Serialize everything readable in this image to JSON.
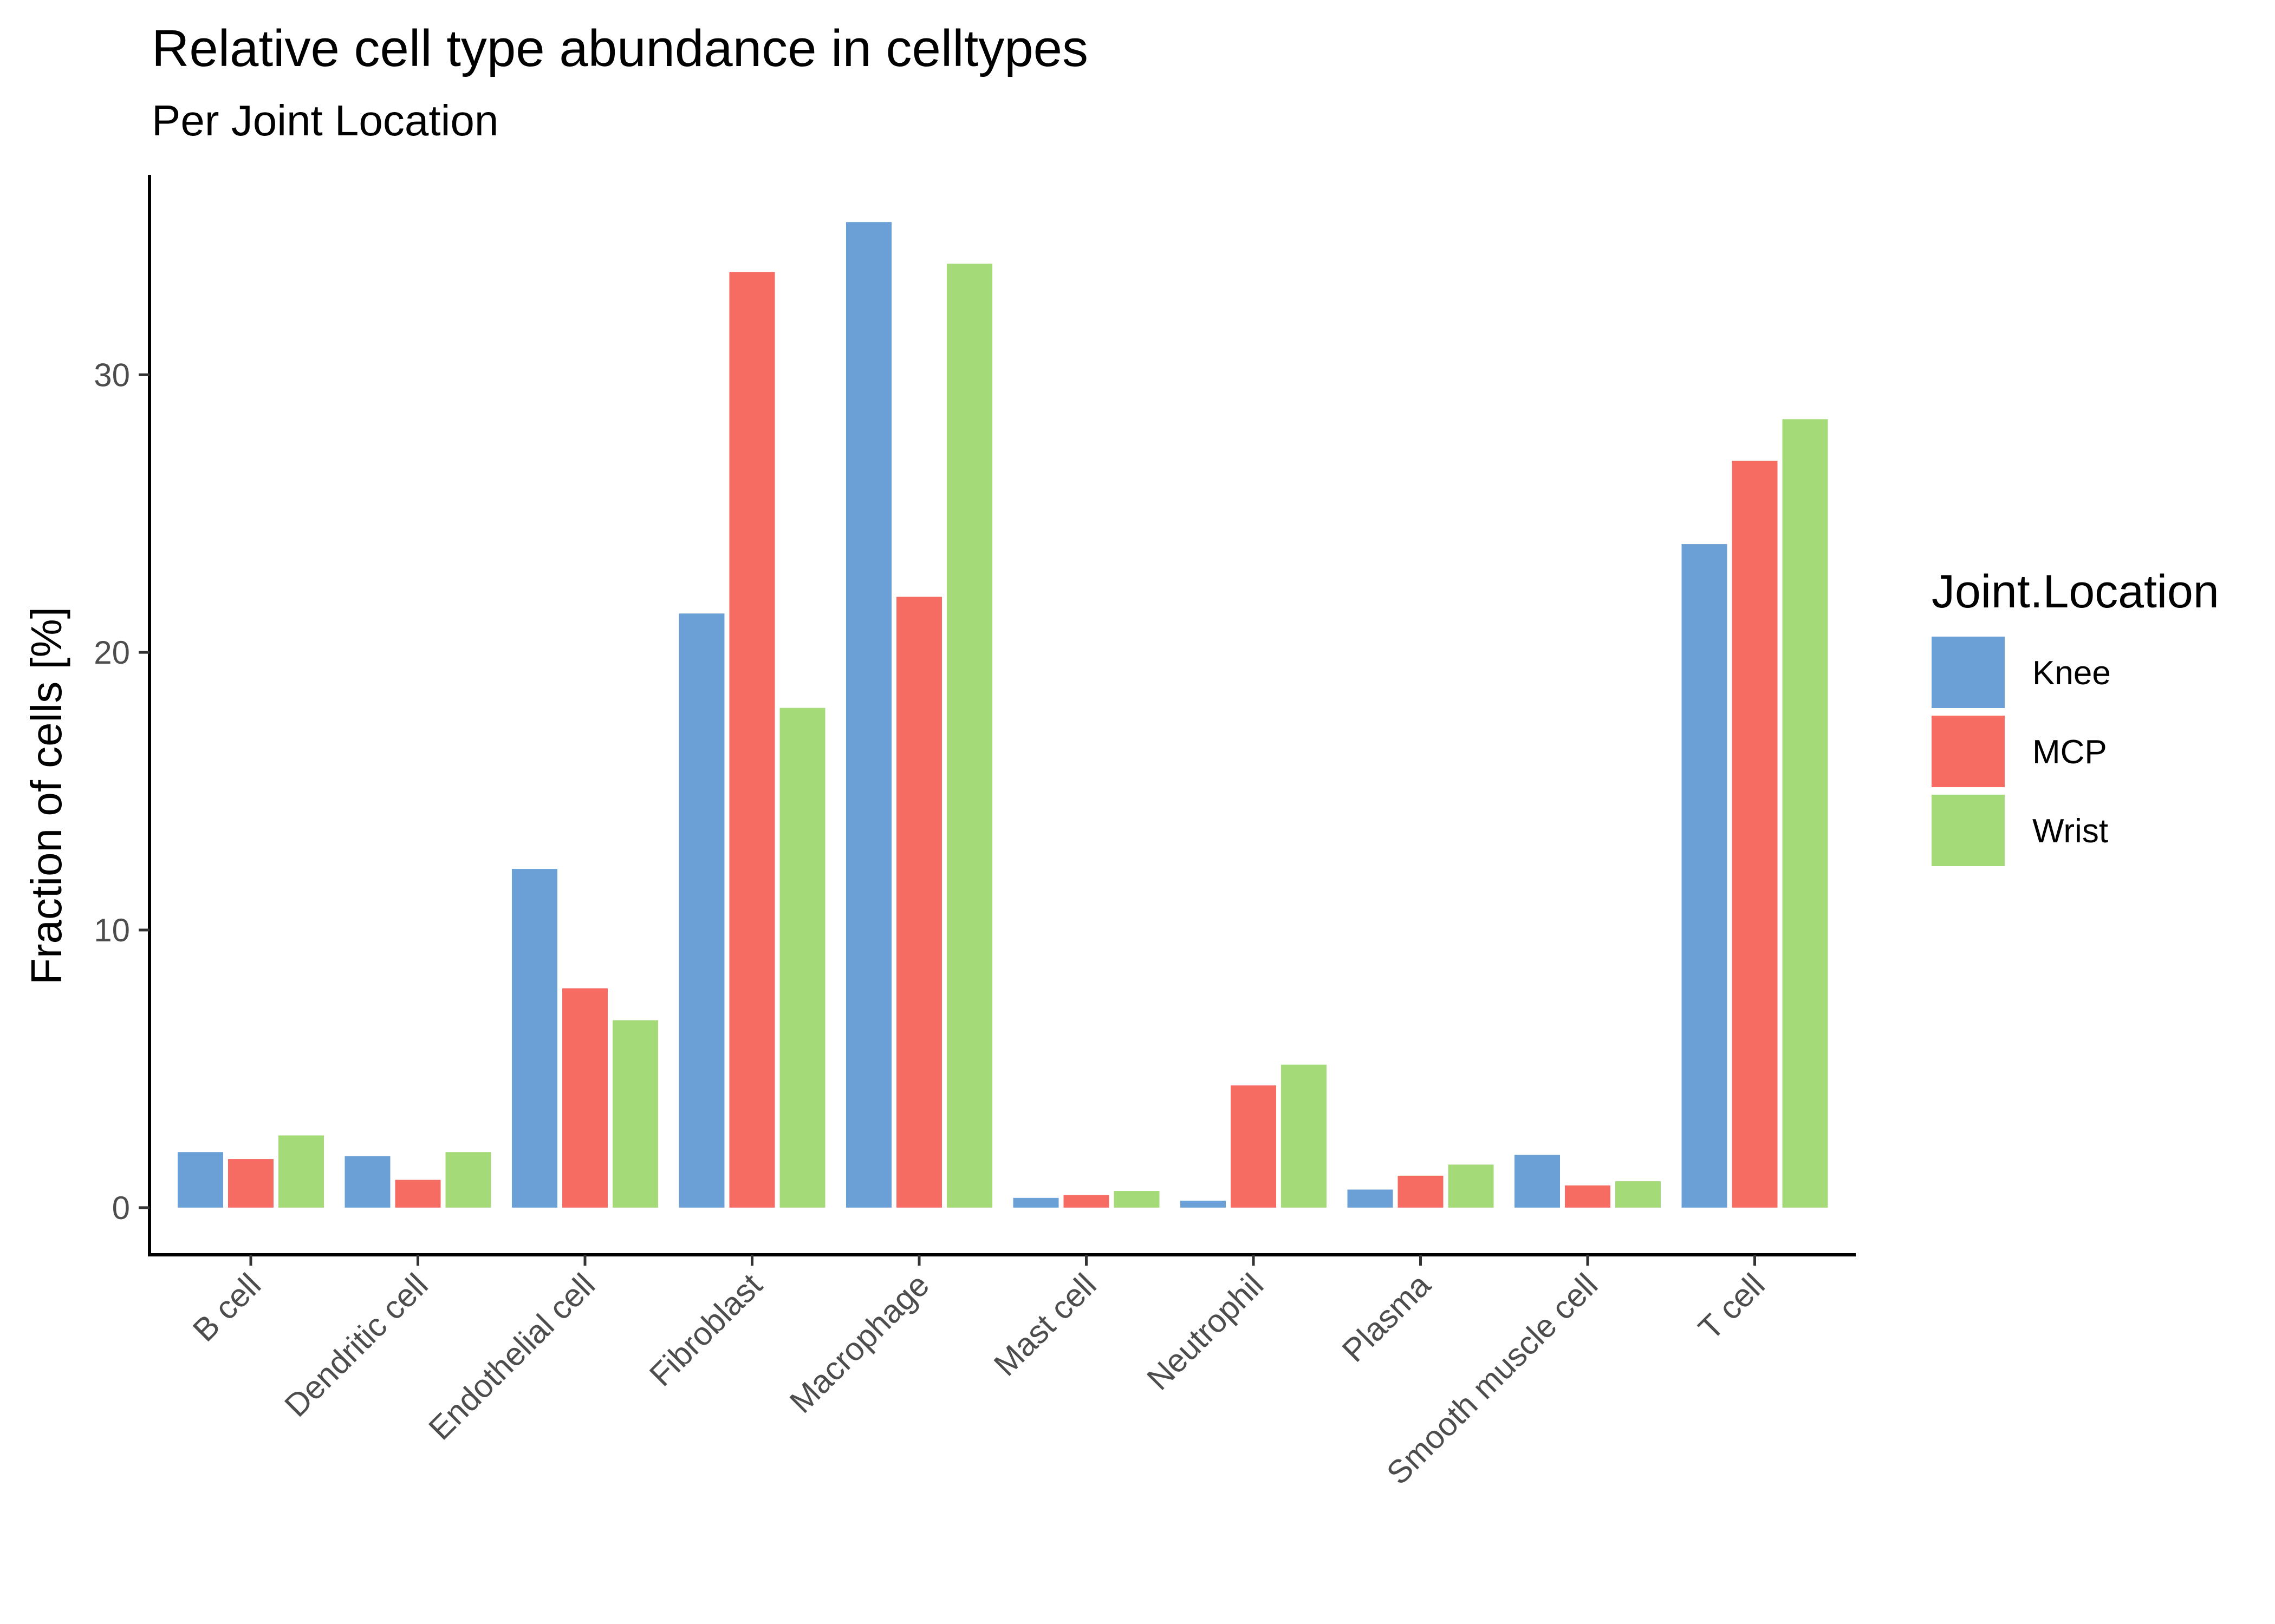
{
  "chart_data": {
    "type": "bar",
    "title": "Relative cell type abundance in celltypes",
    "subtitle": "Per Joint Location",
    "xlabel": "",
    "ylabel": "Fraction of cells [%]",
    "ylim": [
      -1.7,
      37.2
    ],
    "yticks": [
      0,
      10,
      20,
      30
    ],
    "grid": false,
    "legend_title": "Joint.Location",
    "legend_position": "right",
    "categories": [
      "B cell",
      "Dendritic cell",
      "Endothelial cell",
      "Fibroblast",
      "Macrophage",
      "Mast cell",
      "Neutrophil",
      "Plasma",
      "Smooth muscle cell",
      "T cell"
    ],
    "series": [
      {
        "name": "Knee",
        "color": "#6BA0D6",
        "values": [
          2.0,
          1.85,
          12.2,
          21.4,
          35.5,
          0.35,
          0.25,
          0.65,
          1.9,
          23.9
        ]
      },
      {
        "name": "MCP",
        "color": "#F66B62",
        "values": [
          1.75,
          1.0,
          7.9,
          33.7,
          22.0,
          0.45,
          4.4,
          1.15,
          0.8,
          26.9
        ]
      },
      {
        "name": "Wrist",
        "color": "#A5DA78",
        "values": [
          2.6,
          2.0,
          6.75,
          18.0,
          34.0,
          0.6,
          5.15,
          1.55,
          0.95,
          28.4
        ]
      }
    ]
  }
}
